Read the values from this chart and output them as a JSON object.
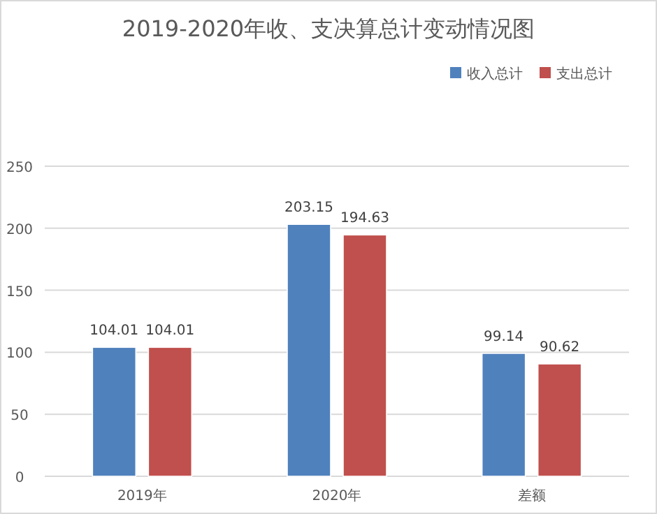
{
  "chart_data": {
    "type": "bar",
    "title": "2019-2020年收、支决算总计变动情况图",
    "categories": [
      "2019年",
      "2020年",
      "差额"
    ],
    "series": [
      {
        "name": "收入总计",
        "color": "#4f81bd",
        "values": [
          104.01,
          203.15,
          99.14
        ]
      },
      {
        "name": "支出总计",
        "color": "#c0504d",
        "values": [
          104.01,
          194.63,
          90.62
        ]
      }
    ],
    "ylim": [
      0,
      250
    ],
    "yticks": [
      0,
      50,
      100,
      150,
      200,
      250
    ],
    "grid": "y",
    "legend": "top right",
    "data_labels": true
  }
}
